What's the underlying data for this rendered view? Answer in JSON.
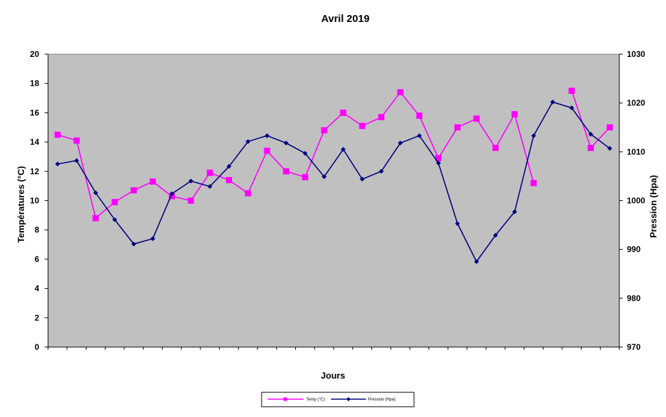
{
  "chart_data": {
    "type": "line",
    "title": "Avril 2019",
    "xlabel": "Jours",
    "ylabel_left": "Températures  (°C)",
    "ylabel_right": "Pression (Hpa)",
    "ylim_left": [
      0,
      20
    ],
    "ylim_right": [
      970,
      1030
    ],
    "yticks_left": [
      "0",
      "2",
      "4",
      "6",
      "8",
      "10",
      "12",
      "14",
      "16",
      "18",
      "20"
    ],
    "yticks_right": [
      "970",
      "980",
      "990",
      "1000",
      "1010",
      "1020",
      "1030"
    ],
    "grid": false,
    "plot_background": "#c0c0c0",
    "legend_position": "bottom-center",
    "series": [
      {
        "name": "Temp (°C)",
        "axis": "left",
        "color": "#ff00ff",
        "marker": "square",
        "values": [
          14.5,
          14.1,
          8.8,
          9.9,
          10.7,
          11.3,
          10.3,
          10.0,
          11.9,
          11.4,
          10.5,
          13.4,
          12.0,
          11.6,
          14.8,
          16.0,
          15.1,
          15.7,
          17.4,
          15.8,
          12.9,
          15.0,
          15.6,
          13.6,
          15.9,
          11.2,
          null,
          17.5,
          13.6,
          15.0
        ]
      },
      {
        "name": "Pression (Hpa)",
        "axis": "right",
        "color": "#000080",
        "marker": "diamond",
        "values": [
          1007.5,
          1008.2,
          1001.6,
          996.1,
          991.1,
          992.2,
          1001.4,
          1004.0,
          1002.9,
          1007.0,
          1012.1,
          1013.3,
          1011.8,
          1009.7,
          1004.9,
          1010.5,
          1004.4,
          1006.0,
          1011.8,
          1013.3,
          1007.7,
          995.3,
          987.5,
          992.9,
          997.7,
          1013.3,
          1020.2,
          1019.0,
          1013.6,
          1010.7
        ]
      }
    ]
  }
}
